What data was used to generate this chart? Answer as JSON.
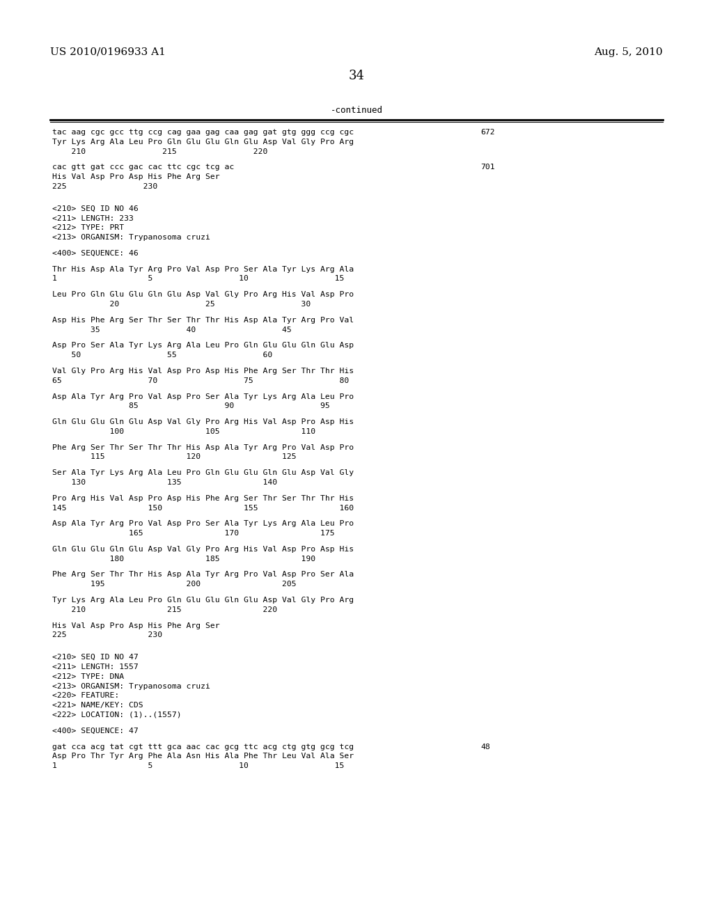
{
  "header_left": "US 2010/0196933 A1",
  "header_right": "Aug. 5, 2010",
  "page_number": "34",
  "continued_label": "-continued",
  "background_color": "#ffffff",
  "text_color": "#000000",
  "font_size_header": 11,
  "font_size_body": 9,
  "font_size_page": 13,
  "content": [
    {
      "type": "seq_line",
      "text": "tac aag cgc gcc ttg ccg cag gaa gag caa gag gat gtg ggg ccg cgc",
      "num": "672"
    },
    {
      "type": "seq_line",
      "text": "Tyr Lys Arg Ala Leu Pro Gln Glu Glu Gln Glu Asp Val Gly Pro Arg",
      "num": ""
    },
    {
      "type": "pos_line",
      "text": "    210                215                220"
    },
    {
      "type": "blank"
    },
    {
      "type": "seq_line",
      "text": "cac gtt gat ccc gac cac ttc cgc tcg ac",
      "num": "701"
    },
    {
      "type": "seq_line",
      "text": "His Val Asp Pro Asp His Phe Arg Ser",
      "num": ""
    },
    {
      "type": "pos_line",
      "text": "225                230"
    },
    {
      "type": "blank"
    },
    {
      "type": "blank"
    },
    {
      "type": "meta",
      "text": "<210> SEQ ID NO 46"
    },
    {
      "type": "meta",
      "text": "<211> LENGTH: 233"
    },
    {
      "type": "meta",
      "text": "<212> TYPE: PRT"
    },
    {
      "type": "meta",
      "text": "<213> ORGANISM: Trypanosoma cruzi"
    },
    {
      "type": "blank"
    },
    {
      "type": "meta",
      "text": "<400> SEQUENCE: 46"
    },
    {
      "type": "blank"
    },
    {
      "type": "seq_line",
      "text": "Thr His Asp Ala Tyr Arg Pro Val Asp Pro Ser Ala Tyr Lys Arg Ala",
      "num": ""
    },
    {
      "type": "pos_line",
      "text": "1                   5                  10                  15"
    },
    {
      "type": "blank"
    },
    {
      "type": "seq_line",
      "text": "Leu Pro Gln Glu Glu Gln Glu Asp Val Gly Pro Arg His Val Asp Pro",
      "num": ""
    },
    {
      "type": "pos_line",
      "text": "            20                  25                  30"
    },
    {
      "type": "blank"
    },
    {
      "type": "seq_line",
      "text": "Asp His Phe Arg Ser Thr Ser Thr Thr His Asp Ala Tyr Arg Pro Val",
      "num": ""
    },
    {
      "type": "pos_line",
      "text": "        35                  40                  45"
    },
    {
      "type": "blank"
    },
    {
      "type": "seq_line",
      "text": "Asp Pro Ser Ala Tyr Lys Arg Ala Leu Pro Gln Glu Glu Gln Glu Asp",
      "num": ""
    },
    {
      "type": "pos_line",
      "text": "    50                  55                  60"
    },
    {
      "type": "blank"
    },
    {
      "type": "seq_line",
      "text": "Val Gly Pro Arg His Val Asp Pro Asp His Phe Arg Ser Thr Thr His",
      "num": ""
    },
    {
      "type": "pos_line",
      "text": "65                  70                  75                  80"
    },
    {
      "type": "blank"
    },
    {
      "type": "seq_line",
      "text": "Asp Ala Tyr Arg Pro Val Asp Pro Ser Ala Tyr Lys Arg Ala Leu Pro",
      "num": ""
    },
    {
      "type": "pos_line",
      "text": "                85                  90                  95"
    },
    {
      "type": "blank"
    },
    {
      "type": "seq_line",
      "text": "Gln Glu Glu Gln Glu Asp Val Gly Pro Arg His Val Asp Pro Asp His",
      "num": ""
    },
    {
      "type": "pos_line",
      "text": "            100                 105                 110"
    },
    {
      "type": "blank"
    },
    {
      "type": "seq_line",
      "text": "Phe Arg Ser Thr Ser Thr Thr His Asp Ala Tyr Arg Pro Val Asp Pro",
      "num": ""
    },
    {
      "type": "pos_line",
      "text": "        115                 120                 125"
    },
    {
      "type": "blank"
    },
    {
      "type": "seq_line",
      "text": "Ser Ala Tyr Lys Arg Ala Leu Pro Gln Glu Glu Gln Glu Asp Val Gly",
      "num": ""
    },
    {
      "type": "pos_line",
      "text": "    130                 135                 140"
    },
    {
      "type": "blank"
    },
    {
      "type": "seq_line",
      "text": "Pro Arg His Val Asp Pro Asp His Phe Arg Ser Thr Ser Thr Thr His",
      "num": ""
    },
    {
      "type": "pos_line",
      "text": "145                 150                 155                 160"
    },
    {
      "type": "blank"
    },
    {
      "type": "seq_line",
      "text": "Asp Ala Tyr Arg Pro Val Asp Pro Ser Ala Tyr Lys Arg Ala Leu Pro",
      "num": ""
    },
    {
      "type": "pos_line",
      "text": "                165                 170                 175"
    },
    {
      "type": "blank"
    },
    {
      "type": "seq_line",
      "text": "Gln Glu Glu Gln Glu Asp Val Gly Pro Arg His Val Asp Pro Asp His",
      "num": ""
    },
    {
      "type": "pos_line",
      "text": "            180                 185                 190"
    },
    {
      "type": "blank"
    },
    {
      "type": "seq_line",
      "text": "Phe Arg Ser Thr Thr His Asp Ala Tyr Arg Pro Val Asp Pro Ser Ala",
      "num": ""
    },
    {
      "type": "pos_line",
      "text": "        195                 200                 205"
    },
    {
      "type": "blank"
    },
    {
      "type": "seq_line",
      "text": "Tyr Lys Arg Ala Leu Pro Gln Glu Glu Gln Glu Asp Val Gly Pro Arg",
      "num": ""
    },
    {
      "type": "pos_line",
      "text": "    210                 215                 220"
    },
    {
      "type": "blank"
    },
    {
      "type": "seq_line",
      "text": "His Val Asp Pro Asp His Phe Arg Ser",
      "num": ""
    },
    {
      "type": "pos_line",
      "text": "225                 230"
    },
    {
      "type": "blank"
    },
    {
      "type": "blank"
    },
    {
      "type": "meta",
      "text": "<210> SEQ ID NO 47"
    },
    {
      "type": "meta",
      "text": "<211> LENGTH: 1557"
    },
    {
      "type": "meta",
      "text": "<212> TYPE: DNA"
    },
    {
      "type": "meta",
      "text": "<213> ORGANISM: Trypanosoma cruzi"
    },
    {
      "type": "meta",
      "text": "<220> FEATURE:"
    },
    {
      "type": "meta",
      "text": "<221> NAME/KEY: CDS"
    },
    {
      "type": "meta",
      "text": "<222> LOCATION: (1)..(1557)"
    },
    {
      "type": "blank"
    },
    {
      "type": "meta",
      "text": "<400> SEQUENCE: 47"
    },
    {
      "type": "blank"
    },
    {
      "type": "seq_line",
      "text": "gat cca acg tat cgt ttt gca aac cac gcg ttc acg ctg gtg gcg tcg",
      "num": "48"
    },
    {
      "type": "seq_line",
      "text": "Asp Pro Thr Tyr Arg Phe Ala Asn His Ala Phe Thr Leu Val Ala Ser",
      "num": ""
    },
    {
      "type": "pos_line",
      "text": "1                   5                  10                  15"
    }
  ]
}
